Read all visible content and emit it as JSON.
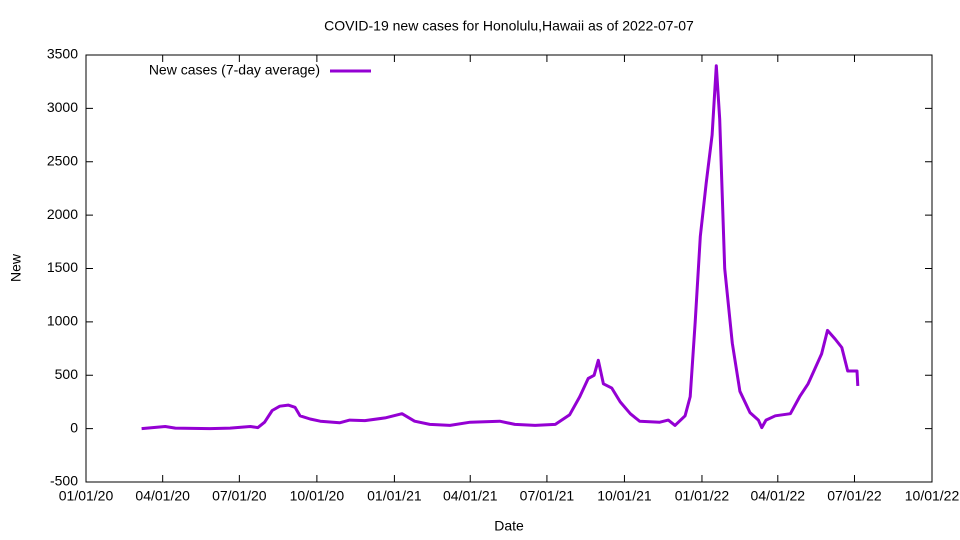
{
  "chart_data": {
    "type": "line",
    "title": "COVID-19 new cases for Honolulu,Hawaii as of 2022-07-07",
    "x_label": "Date",
    "y_label": "New",
    "x": [
      "2020-03-07",
      "2020-04-04",
      "2020-04-16",
      "2020-05-27",
      "2020-06-20",
      "2020-07-14",
      "2020-07-23",
      "2020-07-31",
      "2020-08-09",
      "2020-08-18",
      "2020-08-28",
      "2020-09-05",
      "2020-09-11",
      "2020-09-23",
      "2020-10-05",
      "2020-10-28",
      "2020-11-09",
      "2020-11-27",
      "2020-12-21",
      "2021-01-10",
      "2021-01-25",
      "2021-02-12",
      "2021-03-08",
      "2021-04-01",
      "2021-05-06",
      "2021-05-24",
      "2021-06-17",
      "2021-07-11",
      "2021-07-28",
      "2021-08-09",
      "2021-08-19",
      "2021-08-26",
      "2021-08-31",
      "2021-09-06",
      "2021-09-16",
      "2021-09-26",
      "2021-10-08",
      "2021-10-19",
      "2021-11-12",
      "2021-11-22",
      "2021-11-30",
      "2021-12-12",
      "2021-12-18",
      "2021-12-24",
      "2021-12-30",
      "2022-01-06",
      "2022-01-13",
      "2022-01-18",
      "2022-01-22",
      "2022-01-28",
      "2022-02-06",
      "2022-02-15",
      "2022-02-27",
      "2022-03-09",
      "2022-03-13",
      "2022-03-18",
      "2022-03-29",
      "2022-04-16",
      "2022-04-27",
      "2022-05-07",
      "2022-05-15",
      "2022-05-23",
      "2022-05-30",
      "2022-06-08",
      "2022-06-16",
      "2022-06-23",
      "2022-07-04",
      "2022-07-05"
    ],
    "series": [
      {
        "name": "New cases (7-day average)",
        "color": "#9400d3",
        "values": [
          0,
          20,
          5,
          0,
          5,
          20,
          10,
          60,
          170,
          210,
          220,
          200,
          120,
          90,
          70,
          55,
          80,
          75,
          100,
          140,
          70,
          40,
          30,
          60,
          70,
          40,
          30,
          40,
          130,
          300,
          470,
          500,
          640,
          420,
          380,
          250,
          140,
          70,
          60,
          80,
          30,
          120,
          300,
          1000,
          1800,
          2300,
          2750,
          3400,
          2900,
          1500,
          800,
          350,
          150,
          80,
          10,
          80,
          120,
          140,
          300,
          420,
          560,
          700,
          920,
          840,
          760,
          540,
          540,
          400
        ]
      }
    ],
    "xlim": [
      "2020-01-01",
      "2022-10-01"
    ],
    "xticks": [
      {
        "value": "2020-01-01",
        "label": "01/01/20"
      },
      {
        "value": "2020-04-01",
        "label": "04/01/20"
      },
      {
        "value": "2020-07-01",
        "label": "07/01/20"
      },
      {
        "value": "2020-10-01",
        "label": "10/01/20"
      },
      {
        "value": "2021-01-01",
        "label": "01/01/21"
      },
      {
        "value": "2021-04-01",
        "label": "04/01/21"
      },
      {
        "value": "2021-07-01",
        "label": "07/01/21"
      },
      {
        "value": "2021-10-01",
        "label": "10/01/21"
      },
      {
        "value": "2022-01-01",
        "label": "01/01/22"
      },
      {
        "value": "2022-04-01",
        "label": "04/01/22"
      },
      {
        "value": "2022-07-01",
        "label": "07/01/22"
      },
      {
        "value": "2022-10-01",
        "label": "10/01/22"
      }
    ],
    "ylim": [
      -500,
      3500
    ],
    "yticks": [
      -500,
      0,
      500,
      1000,
      1500,
      2000,
      2500,
      3000,
      3500
    ],
    "legend": "top-left"
  }
}
